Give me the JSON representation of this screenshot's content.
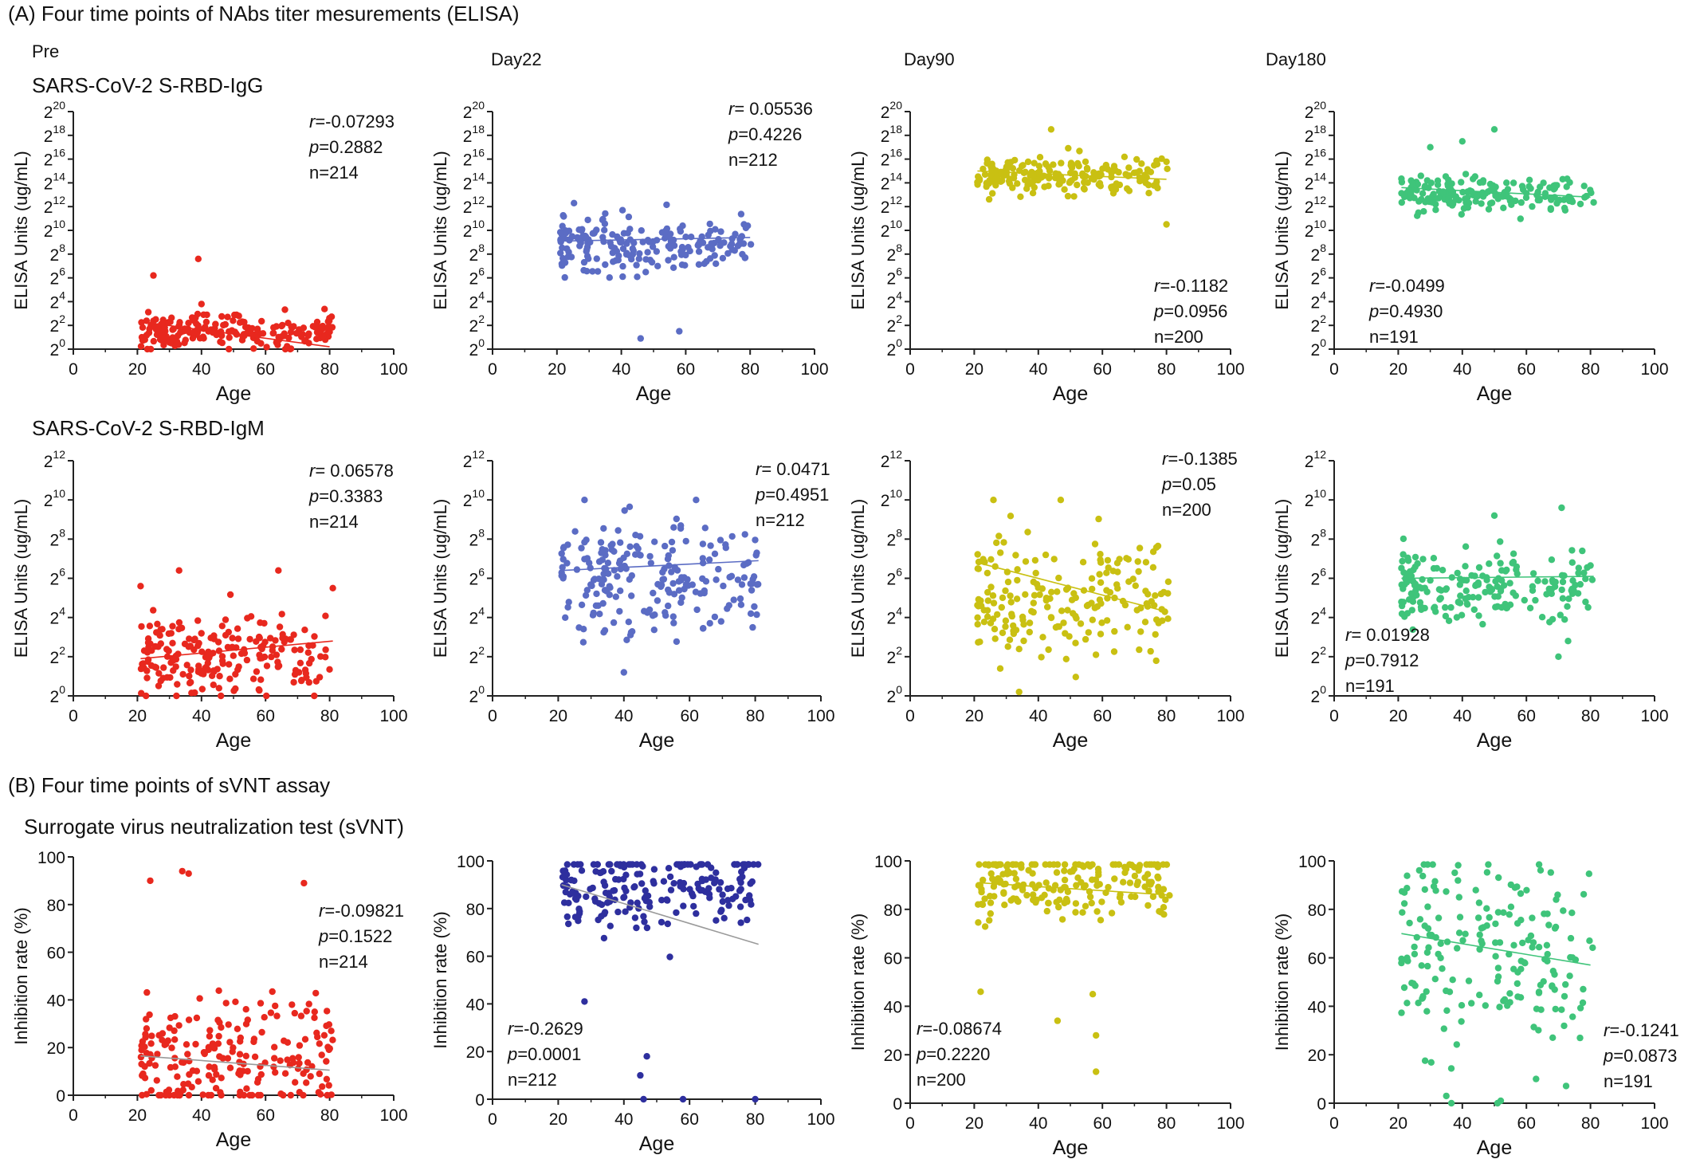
{
  "figure": {
    "section_a": "(A)  Four time points of  NAbs titer mesurements (ELISA)",
    "section_b": "(B)  Four time points of  sVNT assay",
    "columns": [
      "Pre",
      "Day22",
      "Day90",
      "Day180"
    ],
    "row_labels": [
      "SARS-CoV-2 S-RBD-IgG",
      "SARS-CoV-2 S-RBD-IgM",
      "Surrogate virus neutralization test (sVNT)"
    ]
  },
  "chart_data": [
    {
      "type": "scatter",
      "row": "IgG",
      "column": "Pre",
      "color": "#e8281e",
      "xlabel": "Age",
      "ylabel": "ELISA Units (ug/mL)",
      "xlim": [
        0,
        100
      ],
      "xticks": [
        0,
        20,
        40,
        60,
        80,
        100
      ],
      "ylim": [
        0,
        20
      ],
      "yscale": "log2",
      "yticks": [
        0,
        2,
        4,
        6,
        8,
        10,
        12,
        14,
        16,
        18,
        20
      ],
      "stats": [
        "r=-0.07293",
        "p=0.2882",
        "n=214"
      ],
      "n": 214,
      "x_range": [
        21,
        81
      ],
      "y_center": 1.5,
      "y_spread": 0.7,
      "y_outliers": [
        [
          25,
          6.2
        ],
        [
          39,
          7.6
        ],
        [
          40,
          3.8
        ]
      ],
      "trend": [
        [
          21,
          2.3
        ],
        [
          80,
          0.2
        ]
      ]
    },
    {
      "type": "scatter",
      "row": "IgG",
      "column": "Day22",
      "color": "#5b6cc4",
      "xlabel": "Age",
      "ylabel": "ELISA Units (ug/mL)",
      "xlim": [
        0,
        100
      ],
      "xticks": [
        0,
        20,
        40,
        60,
        80,
        100
      ],
      "ylim": [
        0,
        20
      ],
      "yscale": "log2",
      "yticks": [
        0,
        2,
        4,
        6,
        8,
        10,
        12,
        14,
        16,
        18,
        20
      ],
      "stats": [
        "r= 0.05536",
        "p=0.4226",
        "n=212"
      ],
      "n": 212,
      "x_range": [
        21,
        81
      ],
      "y_center": 8.8,
      "y_spread": 1.2,
      "y_outliers": [
        [
          46,
          0.9
        ],
        [
          58,
          1.5
        ]
      ],
      "trend": [
        [
          21,
          9.1
        ],
        [
          80,
          9.4
        ]
      ]
    },
    {
      "type": "scatter",
      "row": "IgG",
      "column": "Day90",
      "color": "#c9c012",
      "xlabel": "Age",
      "ylabel": "ELISA Units (ug/mL)",
      "xlim": [
        0,
        100
      ],
      "xticks": [
        0,
        20,
        40,
        60,
        80,
        100
      ],
      "ylim": [
        0,
        20
      ],
      "yscale": "log2",
      "yticks": [
        0,
        2,
        4,
        6,
        8,
        10,
        12,
        14,
        16,
        18,
        20
      ],
      "stats": [
        "r=-0.1182",
        "p=0.0956",
        "n=200"
      ],
      "n": 200,
      "x_range": [
        21,
        81
      ],
      "y_center": 14.6,
      "y_spread": 0.8,
      "y_outliers": [
        [
          44,
          18.5
        ],
        [
          80,
          10.5
        ]
      ],
      "trend": [
        [
          21,
          15.0
        ],
        [
          80,
          14.3
        ]
      ]
    },
    {
      "type": "scatter",
      "row": "IgG",
      "column": "Day180",
      "color": "#3fc47a",
      "xlabel": "Age",
      "ylabel": "ELISA Units (ug/mL)",
      "xlim": [
        0,
        100
      ],
      "xticks": [
        0,
        20,
        40,
        60,
        80,
        100
      ],
      "ylim": [
        0,
        20
      ],
      "yscale": "log2",
      "yticks": [
        0,
        2,
        4,
        6,
        8,
        10,
        12,
        14,
        16,
        18,
        20
      ],
      "stats": [
        "r=-0.0499",
        "p=0.4930",
        "n=191"
      ],
      "n": 191,
      "x_range": [
        21,
        81
      ],
      "y_center": 13.2,
      "y_spread": 0.7,
      "y_outliers": [
        [
          30,
          17.0
        ],
        [
          40,
          17.5
        ],
        [
          50,
          18.5
        ]
      ],
      "trend": [
        [
          21,
          13.6
        ],
        [
          80,
          12.8
        ]
      ]
    },
    {
      "type": "scatter",
      "row": "IgM",
      "column": "Pre",
      "color": "#e8281e",
      "xlabel": "Age",
      "ylabel": "ELISA Units (ug/mL)",
      "xlim": [
        0,
        100
      ],
      "xticks": [
        0,
        20,
        40,
        60,
        80,
        100
      ],
      "ylim": [
        0,
        12
      ],
      "yscale": "log2",
      "yticks": [
        0,
        2,
        4,
        6,
        8,
        10,
        12
      ],
      "stats": [
        "r= 0.06578",
        "p=0.3383",
        "n=214"
      ],
      "n": 214,
      "x_range": [
        21,
        81
      ],
      "y_center": 2.0,
      "y_spread": 1.1,
      "y_outliers": [
        [
          21,
          5.6
        ],
        [
          33,
          6.4
        ],
        [
          64,
          6.4
        ],
        [
          81,
          5.5
        ]
      ],
      "trend": [
        [
          21,
          1.9
        ],
        [
          81,
          2.8
        ]
      ]
    },
    {
      "type": "scatter",
      "row": "IgM",
      "column": "Day22",
      "color": "#5b6cc4",
      "xlabel": "Age",
      "ylabel": "ELISA Units (ug/mL)",
      "xlim": [
        0,
        100
      ],
      "xticks": [
        0,
        20,
        40,
        60,
        80,
        100
      ],
      "ylim": [
        0,
        12
      ],
      "yscale": "log2",
      "yticks": [
        0,
        2,
        4,
        6,
        8,
        10,
        12
      ],
      "stats": [
        "r= 0.0471",
        "p=0.4951",
        "n=212"
      ],
      "n": 212,
      "x_range": [
        21,
        81
      ],
      "y_center": 6.0,
      "y_spread": 1.4,
      "y_outliers": [
        [
          40,
          1.2
        ],
        [
          28,
          10.0
        ],
        [
          62,
          10.0
        ]
      ],
      "trend": [
        [
          21,
          6.4
        ],
        [
          81,
          6.9
        ]
      ]
    },
    {
      "type": "scatter",
      "row": "IgM",
      "column": "Day90",
      "color": "#c9c012",
      "xlabel": "Age",
      "ylabel": "ELISA Units (ug/mL)",
      "xlim": [
        0,
        100
      ],
      "xticks": [
        0,
        20,
        40,
        60,
        80,
        100
      ],
      "ylim": [
        0,
        12
      ],
      "yscale": "log2",
      "yticks": [
        0,
        2,
        4,
        6,
        8,
        10,
        12
      ],
      "stats": [
        "r=-0.1385",
        "p=0.05",
        "n=200"
      ],
      "n": 200,
      "x_range": [
        21,
        81
      ],
      "y_center": 4.8,
      "y_spread": 1.6,
      "y_outliers": [
        [
          26,
          10.0
        ],
        [
          47,
          10.0
        ],
        [
          34,
          0.2
        ]
      ],
      "trend": [
        [
          21,
          6.8
        ],
        [
          80,
          4.3
        ]
      ]
    },
    {
      "type": "scatter",
      "row": "IgM",
      "column": "Day180",
      "color": "#3fc47a",
      "xlabel": "Age",
      "ylabel": "ELISA Units (ug/mL)",
      "xlim": [
        0,
        100
      ],
      "xticks": [
        0,
        20,
        40,
        60,
        80,
        100
      ],
      "ylim": [
        0,
        12
      ],
      "yscale": "log2",
      "yticks": [
        0,
        2,
        4,
        6,
        8,
        10,
        12
      ],
      "stats": [
        "r= 0.01928",
        "p=0.7912",
        "n=191"
      ],
      "n": 191,
      "x_range": [
        21,
        81
      ],
      "y_center": 5.6,
      "y_spread": 0.9,
      "y_outliers": [
        [
          71,
          9.6
        ],
        [
          70,
          2.0
        ],
        [
          73,
          2.8
        ],
        [
          50,
          9.2
        ]
      ],
      "trend": [
        [
          21,
          6.0
        ],
        [
          81,
          6.1
        ]
      ]
    },
    {
      "type": "scatter",
      "row": "sVNT",
      "column": "Pre",
      "color": "#e8281e",
      "xlabel": "Age",
      "ylabel": "Inhibition rate (%)",
      "xlim": [
        0,
        100
      ],
      "xticks": [
        0,
        20,
        40,
        60,
        80,
        100
      ],
      "ylim": [
        0,
        100
      ],
      "yscale": "linear",
      "yticks": [
        0,
        20,
        40,
        60,
        80,
        100
      ],
      "stats": [
        "r=-0.09821",
        "p=0.1522",
        "n=214"
      ],
      "n": 214,
      "x_range": [
        21,
        81
      ],
      "y_center": 15,
      "y_spread": 13,
      "y_outliers": [
        [
          24,
          90
        ],
        [
          34,
          94
        ],
        [
          36,
          93
        ],
        [
          72,
          89
        ]
      ],
      "trend": [
        [
          21,
          16.5
        ],
        [
          80,
          10.5
        ]
      ]
    },
    {
      "type": "scatter",
      "row": "sVNT",
      "column": "Day22",
      "color": "#2e2f9e",
      "xlabel": "Age",
      "ylabel": "Inhibition rate (%)",
      "xlim": [
        0,
        100
      ],
      "xticks": [
        0,
        20,
        40,
        60,
        80,
        100
      ],
      "ylim": [
        0,
        100
      ],
      "yscale": "linear",
      "yticks": [
        0,
        20,
        40,
        60,
        80,
        100
      ],
      "stats": [
        "r=-0.2629",
        "p=0.0001",
        "n=212"
      ],
      "n": 212,
      "x_range": [
        21,
        81
      ],
      "y_center": 90,
      "y_spread": 9,
      "y_outliers": [
        [
          45,
          10
        ],
        [
          47,
          18
        ],
        [
          28,
          41
        ],
        [
          46,
          0
        ],
        [
          58,
          0
        ],
        [
          80,
          0
        ]
      ],
      "trend": [
        [
          21,
          90
        ],
        [
          81,
          65
        ]
      ]
    },
    {
      "type": "scatter",
      "row": "sVNT",
      "column": "Day90",
      "color": "#c9c012",
      "xlabel": "Age",
      "ylabel": "Inhibition rate (%)",
      "xlim": [
        0,
        100
      ],
      "xticks": [
        0,
        20,
        40,
        60,
        80,
        100
      ],
      "ylim": [
        0,
        100
      ],
      "yscale": "linear",
      "yticks": [
        0,
        20,
        40,
        60,
        80,
        100
      ],
      "stats": [
        "r=-0.08674",
        "p=0.2220",
        "n=200"
      ],
      "n": 200,
      "x_range": [
        21,
        81
      ],
      "y_center": 92,
      "y_spread": 7,
      "y_outliers": [
        [
          58,
          13
        ],
        [
          58,
          28
        ],
        [
          46,
          34
        ],
        [
          57,
          45
        ],
        [
          22,
          46
        ]
      ],
      "trend": [
        [
          21,
          91
        ],
        [
          80,
          86
        ]
      ]
    },
    {
      "type": "scatter",
      "row": "sVNT",
      "column": "Day180",
      "color": "#3fc47a",
      "xlabel": "Age",
      "ylabel": "Inhibition rate (%)",
      "xlim": [
        0,
        100
      ],
      "xticks": [
        0,
        20,
        40,
        60,
        80,
        100
      ],
      "ylim": [
        0,
        100
      ],
      "yscale": "linear",
      "yticks": [
        0,
        20,
        40,
        60,
        80,
        100
      ],
      "stats": [
        "r=-0.1241",
        "p=0.0873",
        "n=191"
      ],
      "n": 191,
      "x_range": [
        21,
        81
      ],
      "y_center": 62,
      "y_spread": 20,
      "y_outliers": [
        [
          35,
          3
        ],
        [
          51,
          0
        ],
        [
          52,
          1
        ],
        [
          63,
          10
        ]
      ],
      "trend": [
        [
          21,
          70
        ],
        [
          80,
          57
        ]
      ]
    }
  ]
}
